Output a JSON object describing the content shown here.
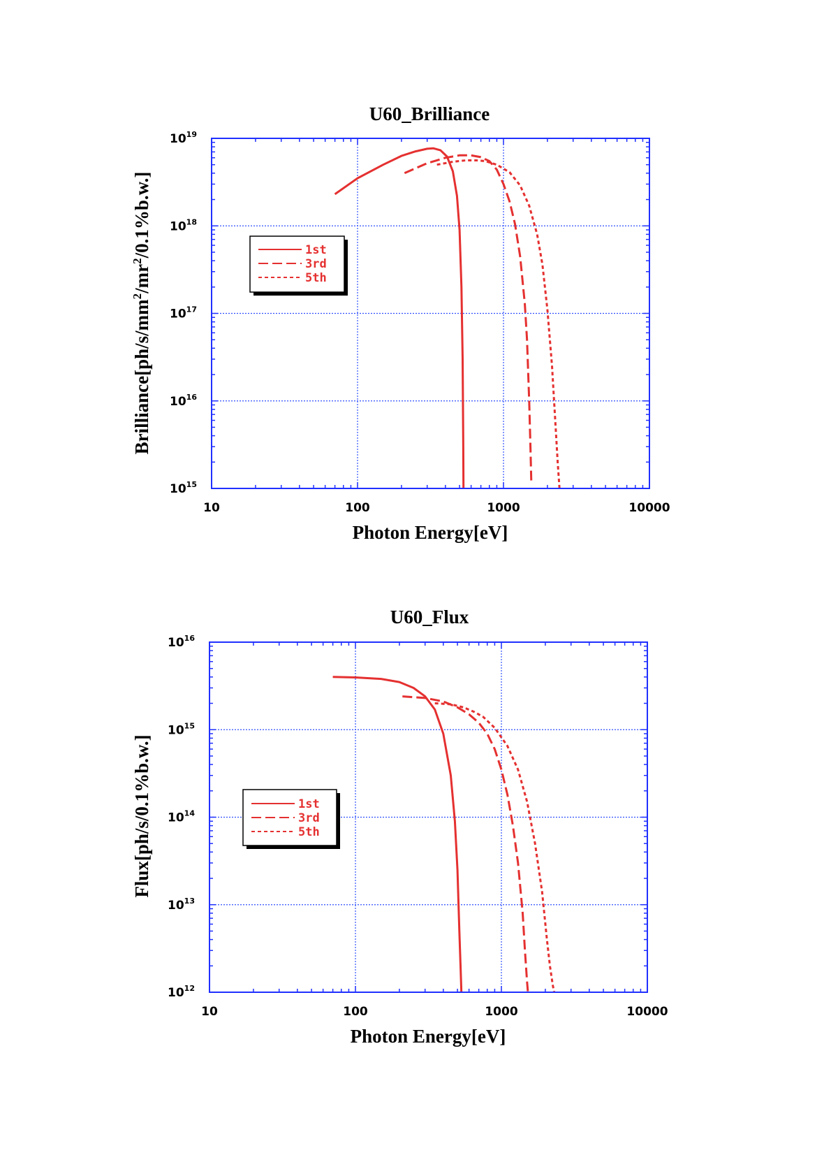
{
  "colors": {
    "axis": "#2030ff",
    "grid": "#3050ff",
    "series": "#e53030",
    "text": "#000000"
  },
  "chart_data": [
    {
      "type": "line",
      "title": "U60_Brilliance",
      "xlabel": "Photon Energy[eV]",
      "ylabel_parts": [
        "Brilliance[ph/s/mm",
        "2",
        "/mr",
        "2",
        "/0.1%b.w.]"
      ],
      "x_scale": "log",
      "y_scale": "log",
      "xlim": [
        10,
        10000
      ],
      "ylim": [
        1000000000000000.0,
        1e+19
      ],
      "x_ticks": [
        "10",
        "100",
        "1000",
        "10000"
      ],
      "y_ticks": [
        {
          "base": "10",
          "exp": "15"
        },
        {
          "base": "10",
          "exp": "16"
        },
        {
          "base": "10",
          "exp": "17"
        },
        {
          "base": "10",
          "exp": "18"
        },
        {
          "base": "10",
          "exp": "19"
        }
      ],
      "grid": true,
      "legend_position": "left-middle",
      "series": [
        {
          "name": "1st",
          "style": "solid",
          "x": [
            70,
            100,
            150,
            200,
            250,
            300,
            330,
            370,
            410,
            450,
            480,
            500,
            515,
            525,
            530,
            532
          ],
          "y": [
            2.3e+18,
            3.5e+18,
            5e+18,
            6.3e+18,
            7.1e+18,
            7.6e+18,
            7.7e+18,
            7.3e+18,
            6.2e+18,
            4.2e+18,
            2.2e+18,
            9e+17,
            2e+17,
            3e+16,
            3000000000000000.0,
            1000000000000000.0
          ]
        },
        {
          "name": "3rd",
          "style": "dashed",
          "x": [
            210,
            300,
            400,
            500,
            600,
            700,
            800,
            900,
            1000,
            1100,
            1200,
            1300,
            1400,
            1450,
            1500,
            1530,
            1550
          ],
          "y": [
            4e+18,
            5.2e+18,
            6e+18,
            6.4e+18,
            6.4e+18,
            6.1e+18,
            5.5e+18,
            4.4e+18,
            3e+18,
            1.9e+18,
            1.05e+18,
            4.5e+17,
            1.3e+17,
            5e+16,
            1e+16,
            3000000000000000.0,
            1200000000000000.0
          ]
        },
        {
          "name": "5th",
          "style": "dotted",
          "x": [
            350,
            450,
            550,
            650,
            750,
            900,
            1100,
            1300,
            1500,
            1700,
            1850,
            2000,
            2150,
            2250,
            2350,
            2420
          ],
          "y": [
            5e+18,
            5.4e+18,
            5.6e+18,
            5.6e+18,
            5.5e+18,
            5e+18,
            4.1e+18,
            2.9e+18,
            1.7e+18,
            8e+17,
            3.6e+17,
            1.1e+17,
            2.5e+16,
            7000000000000000.0,
            2000000000000000.0,
            1000000000000000.0
          ]
        }
      ]
    },
    {
      "type": "line",
      "title": "U60_Flux",
      "xlabel": "Photon Energy[eV]",
      "ylabel_parts": [
        "Flux[ph/s/0.1%b.w.]"
      ],
      "x_scale": "log",
      "y_scale": "log",
      "xlim": [
        10,
        10000
      ],
      "ylim": [
        1000000000000.0,
        1e+16
      ],
      "x_ticks": [
        "10",
        "100",
        "1000",
        "10000"
      ],
      "y_ticks": [
        {
          "base": "10",
          "exp": "12"
        },
        {
          "base": "10",
          "exp": "13"
        },
        {
          "base": "10",
          "exp": "14"
        },
        {
          "base": "10",
          "exp": "15"
        },
        {
          "base": "10",
          "exp": "16"
        }
      ],
      "grid": true,
      "legend_position": "left-middle",
      "series": [
        {
          "name": "1st",
          "style": "solid",
          "x": [
            70,
            100,
            150,
            200,
            250,
            300,
            350,
            400,
            450,
            480,
            500,
            515,
            525,
            530,
            532
          ],
          "y": [
            4000000000000000.0,
            3950000000000000.0,
            3800000000000000.0,
            3500000000000000.0,
            3000000000000000.0,
            2400000000000000.0,
            1700000000000000.0,
            900000000000000.0,
            300000000000000.0,
            90000000000000.0,
            25000000000000.0,
            5000000000000.0,
            2000000000000.0,
            1200000000000.0,
            1000000000000.0
          ]
        },
        {
          "name": "3rd",
          "style": "dashed",
          "x": [
            210,
            300,
            400,
            500,
            600,
            700,
            800,
            900,
            1000,
            1100,
            1200,
            1300,
            1400,
            1450,
            1500,
            1520
          ],
          "y": [
            2400000000000000.0,
            2300000000000000.0,
            2100000000000000.0,
            1800000000000000.0,
            1500000000000000.0,
            1200000000000000.0,
            900000000000000.0,
            600000000000000.0,
            350000000000000.0,
            180000000000000.0,
            80000000000000.0,
            30000000000000.0,
            8000000000000.0,
            3000000000000.0,
            1300000000000.0,
            1000000000000.0
          ]
        },
        {
          "name": "5th",
          "style": "dotted",
          "x": [
            350,
            450,
            550,
            650,
            750,
            900,
            1100,
            1300,
            1500,
            1700,
            1900,
            2050,
            2150,
            2250,
            2300
          ],
          "y": [
            2000000000000000.0,
            1950000000000000.0,
            1800000000000000.0,
            1600000000000000.0,
            1400000000000000.0,
            1050000000000000.0,
            650000000000000.0,
            350000000000000.0,
            150000000000000.0,
            50000000000000.0,
            14000000000000.0,
            4000000000000.0,
            2000000000000.0,
            1200000000000.0,
            1000000000000.0
          ]
        }
      ]
    }
  ]
}
